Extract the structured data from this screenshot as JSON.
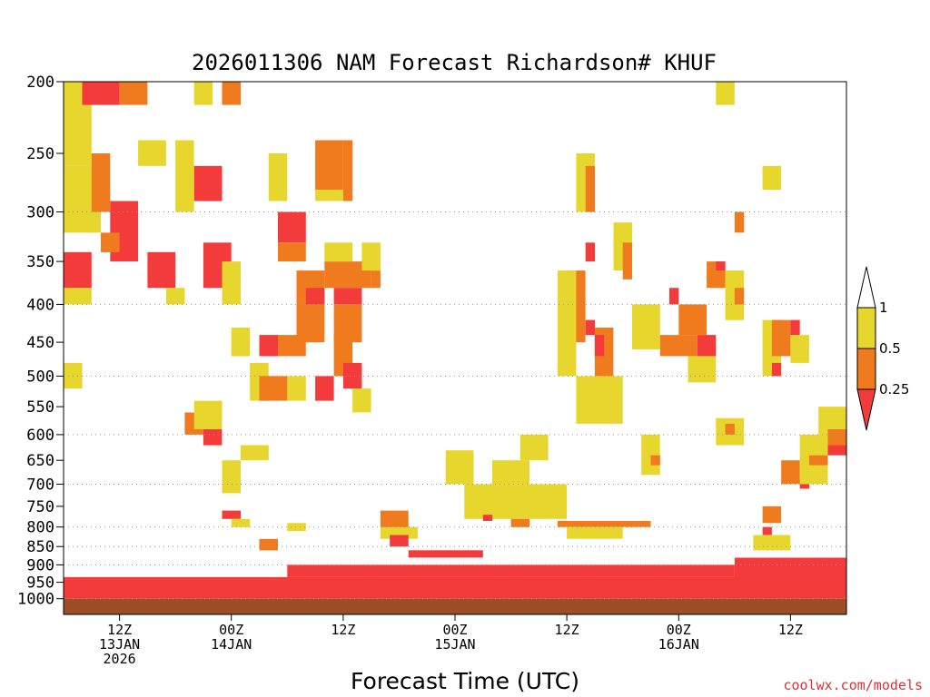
{
  "title": "2026011306 NAM Forecast Richardson# KHUF",
  "xlabel": "Forecast Time (UTC)",
  "credit": "coolwx.com/models",
  "colors": {
    "low": "#f33b3b",
    "mid": "#f07b1f",
    "high": "#e6d62e",
    "ground": "#9b4e28",
    "grid": "#999999"
  },
  "chart_data": {
    "type": "heatmap",
    "title": "2026011306 NAM Forecast Richardson# KHUF",
    "xlabel": "Forecast Time (UTC)",
    "ylabel": "",
    "y_scale": "log",
    "y_inverted": true,
    "ylim": [
      200,
      1050
    ],
    "xlim": [
      "2026-01-13T06Z",
      "2026-01-16T18Z"
    ],
    "y_ticks": [
      200,
      250,
      300,
      350,
      400,
      450,
      500,
      550,
      600,
      650,
      700,
      750,
      800,
      850,
      900,
      950,
      1000
    ],
    "gridlines": [
      300,
      400,
      500,
      600,
      700,
      800,
      850,
      900,
      1000
    ],
    "x_ticks": [
      {
        "time": "2026-01-13T12Z",
        "lines": [
          "12Z",
          "13JAN",
          "2026"
        ]
      },
      {
        "time": "2026-01-14T00Z",
        "lines": [
          "00Z",
          "14JAN"
        ]
      },
      {
        "time": "2026-01-14T12Z",
        "lines": [
          "12Z"
        ]
      },
      {
        "time": "2026-01-15T00Z",
        "lines": [
          "00Z",
          "15JAN"
        ]
      },
      {
        "time": "2026-01-15T12Z",
        "lines": [
          "12Z"
        ]
      },
      {
        "time": "2026-01-16T00Z",
        "lines": [
          "00Z",
          "16JAN"
        ]
      },
      {
        "time": "2026-01-16T12Z",
        "lines": [
          "12Z"
        ]
      }
    ],
    "legend": {
      "placement": "right",
      "levels": [
        "1",
        "0.5",
        "0.25"
      ],
      "bins": [
        {
          "range": "> 1",
          "color": "#ffffff"
        },
        {
          "range": "0.5 - 1",
          "color": "#e6d62e"
        },
        {
          "range": "0.25 - 0.5",
          "color": "#f07b1f"
        },
        {
          "range": "< 0.25",
          "color": "#f33b3b"
        }
      ]
    },
    "regions": [
      {
        "class": "low",
        "t0": "2026-01-13T06Z",
        "t1": "2026-01-16T18Z",
        "p0": 935,
        "p1": 1000
      },
      {
        "class": "low",
        "t0": "2026-01-14T06Z",
        "t1": "2026-01-16T06Z",
        "p0": 900,
        "p1": 935
      },
      {
        "class": "low",
        "t0": "2026-01-16T06Z",
        "t1": "2026-01-16T18Z",
        "p0": 880,
        "p1": 935
      },
      {
        "class": "high",
        "t0": "2026-01-13T06Z",
        "t1": "2026-01-13T09Z",
        "p0": 200,
        "p1": 260
      },
      {
        "class": "low",
        "t0": "2026-01-13T08Z",
        "t1": "2026-01-13T12Z",
        "p0": 200,
        "p1": 215
      },
      {
        "class": "mid",
        "t0": "2026-01-13T12Z",
        "t1": "2026-01-13T15Z",
        "p0": 200,
        "p1": 215
      },
      {
        "class": "high",
        "t0": "2026-01-13T06Z",
        "t1": "2026-01-13T10Z",
        "p0": 260,
        "p1": 320
      },
      {
        "class": "low",
        "t0": "2026-01-13T06Z",
        "t1": "2026-01-13T09Z",
        "p0": 340,
        "p1": 380
      },
      {
        "class": "high",
        "t0": "2026-01-13T06Z",
        "t1": "2026-01-13T09Z",
        "p0": 380,
        "p1": 400
      },
      {
        "class": "mid",
        "t0": "2026-01-13T09Z",
        "t1": "2026-01-13T11Z",
        "p0": 250,
        "p1": 300
      },
      {
        "class": "low",
        "t0": "2026-01-13T11Z",
        "t1": "2026-01-13T14Z",
        "p0": 290,
        "p1": 350
      },
      {
        "class": "mid",
        "t0": "2026-01-13T10Z",
        "t1": "2026-01-13T12Z",
        "p0": 320,
        "p1": 340
      },
      {
        "class": "high",
        "t0": "2026-01-13T14Z",
        "t1": "2026-01-13T17Z",
        "p0": 240,
        "p1": 260
      },
      {
        "class": "low",
        "t0": "2026-01-13T15Z",
        "t1": "2026-01-13T18Z",
        "p0": 340,
        "p1": 380
      },
      {
        "class": "high",
        "t0": "2026-01-13T17Z",
        "t1": "2026-01-13T19Z",
        "p0": 380,
        "p1": 400
      },
      {
        "class": "high",
        "t0": "2026-01-13T20Z",
        "t1": "2026-01-13T22Z",
        "p0": 200,
        "p1": 215
      },
      {
        "class": "low",
        "t0": "2026-01-13T20Z",
        "t1": "2026-01-13T23Z",
        "p0": 260,
        "p1": 290
      },
      {
        "class": "high",
        "t0": "2026-01-13T18Z",
        "t1": "2026-01-13T20Z",
        "p0": 240,
        "p1": 300
      },
      {
        "class": "low",
        "t0": "2026-01-13T21Z",
        "t1": "2026-01-14T00Z",
        "p0": 330,
        "p1": 380
      },
      {
        "class": "high",
        "t0": "2026-01-13T23Z",
        "t1": "2026-01-14T01Z",
        "p0": 350,
        "p1": 400
      },
      {
        "class": "mid",
        "t0": "2026-01-13T23Z",
        "t1": "2026-01-14T01Z",
        "p0": 200,
        "p1": 215
      },
      {
        "class": "high",
        "t0": "2026-01-14T00Z",
        "t1": "2026-01-14T02Z",
        "p0": 430,
        "p1": 470
      },
      {
        "class": "low",
        "t0": "2026-01-14T03Z",
        "t1": "2026-01-14T05Z",
        "p0": 440,
        "p1": 470
      },
      {
        "class": "high",
        "t0": "2026-01-14T02Z",
        "t1": "2026-01-14T04Z",
        "p0": 480,
        "p1": 540
      },
      {
        "class": "low",
        "t0": "2026-01-14T05Z",
        "t1": "2026-01-14T08Z",
        "p0": 300,
        "p1": 330
      },
      {
        "class": "mid",
        "t0": "2026-01-14T05Z",
        "t1": "2026-01-14T08Z",
        "p0": 330,
        "p1": 350
      },
      {
        "class": "high",
        "t0": "2026-01-14T04Z",
        "t1": "2026-01-14T06Z",
        "p0": 250,
        "p1": 290
      },
      {
        "class": "mid",
        "t0": "2026-01-14T07Z",
        "t1": "2026-01-14T10Z",
        "p0": 360,
        "p1": 450
      },
      {
        "class": "high",
        "t0": "2026-01-14T06Z",
        "t1": "2026-01-14T08Z",
        "p0": 500,
        "p1": 540
      },
      {
        "class": "mid",
        "t0": "2026-01-14T03Z",
        "t1": "2026-01-14T06Z",
        "p0": 500,
        "p1": 540
      },
      {
        "class": "low",
        "t0": "2026-01-14T08Z",
        "t1": "2026-01-14T10Z",
        "p0": 380,
        "p1": 400
      },
      {
        "class": "mid",
        "t0": "2026-01-14T09Z",
        "t1": "2026-01-14T12Z",
        "p0": 240,
        "p1": 280
      },
      {
        "class": "high",
        "t0": "2026-01-14T09Z",
        "t1": "2026-01-14T12Z",
        "p0": 280,
        "p1": 290
      },
      {
        "class": "mid",
        "t0": "2026-01-14T12Z",
        "t1": "2026-01-14T13Z",
        "p0": 240,
        "p1": 290
      },
      {
        "class": "mid",
        "t0": "2026-01-14T10Z",
        "t1": "2026-01-14T15Z",
        "p0": 350,
        "p1": 380
      },
      {
        "class": "high",
        "t0": "2026-01-14T10Z",
        "t1": "2026-01-14T13Z",
        "p0": 330,
        "p1": 350
      },
      {
        "class": "low",
        "t0": "2026-01-14T11Z",
        "t1": "2026-01-14T14Z",
        "p0": 380,
        "p1": 400
      },
      {
        "class": "mid",
        "t0": "2026-01-14T11Z",
        "t1": "2026-01-14T14Z",
        "p0": 400,
        "p1": 450
      },
      {
        "class": "high",
        "t0": "2026-01-14T14Z",
        "t1": "2026-01-14T16Z",
        "p0": 330,
        "p1": 360
      },
      {
        "class": "mid",
        "t0": "2026-01-14T15Z",
        "t1": "2026-01-14T16Z",
        "p0": 360,
        "p1": 380
      },
      {
        "class": "low",
        "t0": "2026-01-14T09Z",
        "t1": "2026-01-14T11Z",
        "p0": 500,
        "p1": 540
      },
      {
        "class": "mid",
        "t0": "2026-01-14T11Z",
        "t1": "2026-01-14T13Z",
        "p0": 440,
        "p1": 500
      },
      {
        "class": "low",
        "t0": "2026-01-14T12Z",
        "t1": "2026-01-14T14Z",
        "p0": 480,
        "p1": 520
      },
      {
        "class": "high",
        "t0": "2026-01-14T13Z",
        "t1": "2026-01-14T15Z",
        "p0": 520,
        "p1": 560
      },
      {
        "class": "mid",
        "t0": "2026-01-14T05Z",
        "t1": "2026-01-14T08Z",
        "p0": 440,
        "p1": 470
      },
      {
        "class": "high",
        "t0": "2026-01-14T01Z",
        "t1": "2026-01-14T04Z",
        "p0": 620,
        "p1": 650
      },
      {
        "class": "mid",
        "t0": "2026-01-13T19Z",
        "t1": "2026-01-13T21Z",
        "p0": 560,
        "p1": 600
      },
      {
        "class": "low",
        "t0": "2026-01-13T21Z",
        "t1": "2026-01-13T23Z",
        "p0": 590,
        "p1": 620
      },
      {
        "class": "high",
        "t0": "2026-01-13T20Z",
        "t1": "2026-01-13T23Z",
        "p0": 540,
        "p1": 590
      },
      {
        "class": "high",
        "t0": "2026-01-13T23Z",
        "t1": "2026-01-14T01Z",
        "p0": 650,
        "p1": 720
      },
      {
        "class": "low",
        "t0": "2026-01-13T23Z",
        "t1": "2026-01-14T01Z",
        "p0": 760,
        "p1": 780
      },
      {
        "class": "high",
        "t0": "2026-01-14T00Z",
        "t1": "2026-01-14T02Z",
        "p0": 780,
        "p1": 800
      },
      {
        "class": "mid",
        "t0": "2026-01-14T03Z",
        "t1": "2026-01-14T05Z",
        "p0": 830,
        "p1": 860
      },
      {
        "class": "high",
        "t0": "2026-01-14T06Z",
        "t1": "2026-01-14T08Z",
        "p0": 790,
        "p1": 810
      },
      {
        "class": "high",
        "t0": "2026-01-13T06Z",
        "t1": "2026-01-13T08Z",
        "p0": 480,
        "p1": 520
      },
      {
        "class": "high",
        "t0": "2026-01-14T16Z",
        "t1": "2026-01-14T20Z",
        "p0": 800,
        "p1": 830
      },
      {
        "class": "mid",
        "t0": "2026-01-14T16Z",
        "t1": "2026-01-14T19Z",
        "p0": 760,
        "p1": 800
      },
      {
        "class": "low",
        "t0": "2026-01-14T17Z",
        "t1": "2026-01-14T19Z",
        "p0": 820,
        "p1": 850
      },
      {
        "class": "low",
        "t0": "2026-01-14T19Z",
        "t1": "2026-01-15T03Z",
        "p0": 860,
        "p1": 880
      },
      {
        "class": "high",
        "t0": "2026-01-14T23Z",
        "t1": "2026-01-15T02Z",
        "p0": 630,
        "p1": 700
      },
      {
        "class": "high",
        "t0": "2026-01-15T01Z",
        "t1": "2026-01-15T12Z",
        "p0": 700,
        "p1": 780
      },
      {
        "class": "high",
        "t0": "2026-01-15T04Z",
        "t1": "2026-01-15T08Z",
        "p0": 650,
        "p1": 700
      },
      {
        "class": "high",
        "t0": "2026-01-15T07Z",
        "t1": "2026-01-15T10Z",
        "p0": 600,
        "p1": 650
      },
      {
        "class": "low",
        "t0": "2026-01-15T03Z",
        "t1": "2026-01-15T04Z",
        "p0": 770,
        "p1": 785
      },
      {
        "class": "mid",
        "t0": "2026-01-15T06Z",
        "t1": "2026-01-15T08Z",
        "p0": 780,
        "p1": 800
      },
      {
        "class": "mid",
        "t0": "2026-01-15T11Z",
        "t1": "2026-01-15T21Z",
        "p0": 785,
        "p1": 800
      },
      {
        "class": "high",
        "t0": "2026-01-15T12Z",
        "t1": "2026-01-15T18Z",
        "p0": 800,
        "p1": 830
      },
      {
        "class": "high",
        "t0": "2026-01-15T13Z",
        "t1": "2026-01-15T15Z",
        "p0": 250,
        "p1": 300
      },
      {
        "class": "mid",
        "t0": "2026-01-15T14Z",
        "t1": "2026-01-15T15Z",
        "p0": 260,
        "p1": 300
      },
      {
        "class": "low",
        "t0": "2026-01-15T14Z",
        "t1": "2026-01-15T15Z",
        "p0": 330,
        "p1": 350
      },
      {
        "class": "mid",
        "t0": "2026-01-15T12Z",
        "t1": "2026-01-15T14Z",
        "p0": 360,
        "p1": 450
      },
      {
        "class": "high",
        "t0": "2026-01-15T11Z",
        "t1": "2026-01-15T13Z",
        "p0": 360,
        "p1": 500
      },
      {
        "class": "low",
        "t0": "2026-01-15T14Z",
        "t1": "2026-01-15T15Z",
        "p0": 420,
        "p1": 440
      },
      {
        "class": "mid",
        "t0": "2026-01-15T15Z",
        "t1": "2026-01-15T17Z",
        "p0": 430,
        "p1": 500
      },
      {
        "class": "low",
        "t0": "2026-01-15T15Z",
        "t1": "2026-01-15T16Z",
        "p0": 440,
        "p1": 470
      },
      {
        "class": "high",
        "t0": "2026-01-15T13Z",
        "t1": "2026-01-15T18Z",
        "p0": 500,
        "p1": 580
      },
      {
        "class": "high",
        "t0": "2026-01-15T17Z",
        "t1": "2026-01-15T19Z",
        "p0": 310,
        "p1": 360
      },
      {
        "class": "mid",
        "t0": "2026-01-15T18Z",
        "t1": "2026-01-15T19Z",
        "p0": 330,
        "p1": 370
      },
      {
        "class": "high",
        "t0": "2026-01-15T20Z",
        "t1": "2026-01-15T22Z",
        "p0": 600,
        "p1": 680
      },
      {
        "class": "mid",
        "t0": "2026-01-15T21Z",
        "t1": "2026-01-15T22Z",
        "p0": 640,
        "p1": 660
      },
      {
        "class": "high",
        "t0": "2026-01-15T19Z",
        "t1": "2026-01-15T22Z",
        "p0": 400,
        "p1": 460
      },
      {
        "class": "mid",
        "t0": "2026-01-15T22Z",
        "t1": "2026-01-16T02Z",
        "p0": 440,
        "p1": 470
      },
      {
        "class": "mid",
        "t0": "2026-01-16T00Z",
        "t1": "2026-01-16T03Z",
        "p0": 400,
        "p1": 440
      },
      {
        "class": "low",
        "t0": "2026-01-15T23Z",
        "t1": "2026-01-16T00Z",
        "p0": 380,
        "p1": 400
      },
      {
        "class": "low",
        "t0": "2026-01-16T02Z",
        "t1": "2026-01-16T04Z",
        "p0": 440,
        "p1": 470
      },
      {
        "class": "high",
        "t0": "2026-01-16T01Z",
        "t1": "2026-01-16T04Z",
        "p0": 470,
        "p1": 510
      },
      {
        "class": "mid",
        "t0": "2026-01-16T03Z",
        "t1": "2026-01-16T05Z",
        "p0": 350,
        "p1": 380
      },
      {
        "class": "low",
        "t0": "2026-01-16T04Z",
        "t1": "2026-01-16T05Z",
        "p0": 350,
        "p1": 360
      },
      {
        "class": "high",
        "t0": "2026-01-16T05Z",
        "t1": "2026-01-16T07Z",
        "p0": 360,
        "p1": 420
      },
      {
        "class": "mid",
        "t0": "2026-01-16T06Z",
        "t1": "2026-01-16T07Z",
        "p0": 380,
        "p1": 400
      },
      {
        "class": "mid",
        "t0": "2026-01-16T06Z",
        "t1": "2026-01-16T07Z",
        "p0": 300,
        "p1": 320
      },
      {
        "class": "high",
        "t0": "2026-01-16T04Z",
        "t1": "2026-01-16T06Z",
        "p0": 200,
        "p1": 215
      },
      {
        "class": "high",
        "t0": "2026-01-16T09Z",
        "t1": "2026-01-16T11Z",
        "p0": 260,
        "p1": 280
      },
      {
        "class": "high",
        "t0": "2026-01-16T09Z",
        "t1": "2026-01-16T11Z",
        "p0": 420,
        "p1": 500
      },
      {
        "class": "mid",
        "t0": "2026-01-16T10Z",
        "t1": "2026-01-16T12Z",
        "p0": 420,
        "p1": 470
      },
      {
        "class": "low",
        "t0": "2026-01-16T10Z",
        "t1": "2026-01-16T11Z",
        "p0": 480,
        "p1": 500
      },
      {
        "class": "low",
        "t0": "2026-01-16T12Z",
        "t1": "2026-01-16T13Z",
        "p0": 420,
        "p1": 440
      },
      {
        "class": "high",
        "t0": "2026-01-16T12Z",
        "t1": "2026-01-16T14Z",
        "p0": 440,
        "p1": 480
      },
      {
        "class": "high",
        "t0": "2026-01-16T04Z",
        "t1": "2026-01-16T07Z",
        "p0": 570,
        "p1": 620
      },
      {
        "class": "mid",
        "t0": "2026-01-16T05Z",
        "t1": "2026-01-16T06Z",
        "p0": 580,
        "p1": 600
      },
      {
        "class": "mid",
        "t0": "2026-01-16T09Z",
        "t1": "2026-01-16T11Z",
        "p0": 750,
        "p1": 790
      },
      {
        "class": "low",
        "t0": "2026-01-16T09Z",
        "t1": "2026-01-16T10Z",
        "p0": 800,
        "p1": 820
      },
      {
        "class": "high",
        "t0": "2026-01-16T08Z",
        "t1": "2026-01-16T12Z",
        "p0": 820,
        "p1": 860
      },
      {
        "class": "mid",
        "t0": "2026-01-16T11Z",
        "t1": "2026-01-16T13Z",
        "p0": 650,
        "p1": 700
      },
      {
        "class": "low",
        "t0": "2026-01-16T13Z",
        "t1": "2026-01-16T14Z",
        "p0": 690,
        "p1": 710
      },
      {
        "class": "high",
        "t0": "2026-01-16T13Z",
        "t1": "2026-01-16T16Z",
        "p0": 600,
        "p1": 700
      },
      {
        "class": "high",
        "t0": "2026-01-16T15Z",
        "t1": "2026-01-16T18Z",
        "p0": 550,
        "p1": 600
      },
      {
        "class": "mid",
        "t0": "2026-01-16T16Z",
        "t1": "2026-01-16T18Z",
        "p0": 590,
        "p1": 630
      },
      {
        "class": "low",
        "t0": "2026-01-16T16Z",
        "t1": "2026-01-16T18Z",
        "p0": 620,
        "p1": 640
      },
      {
        "class": "mid",
        "t0": "2026-01-16T14Z",
        "t1": "2026-01-16T16Z",
        "p0": 640,
        "p1": 660
      }
    ]
  }
}
